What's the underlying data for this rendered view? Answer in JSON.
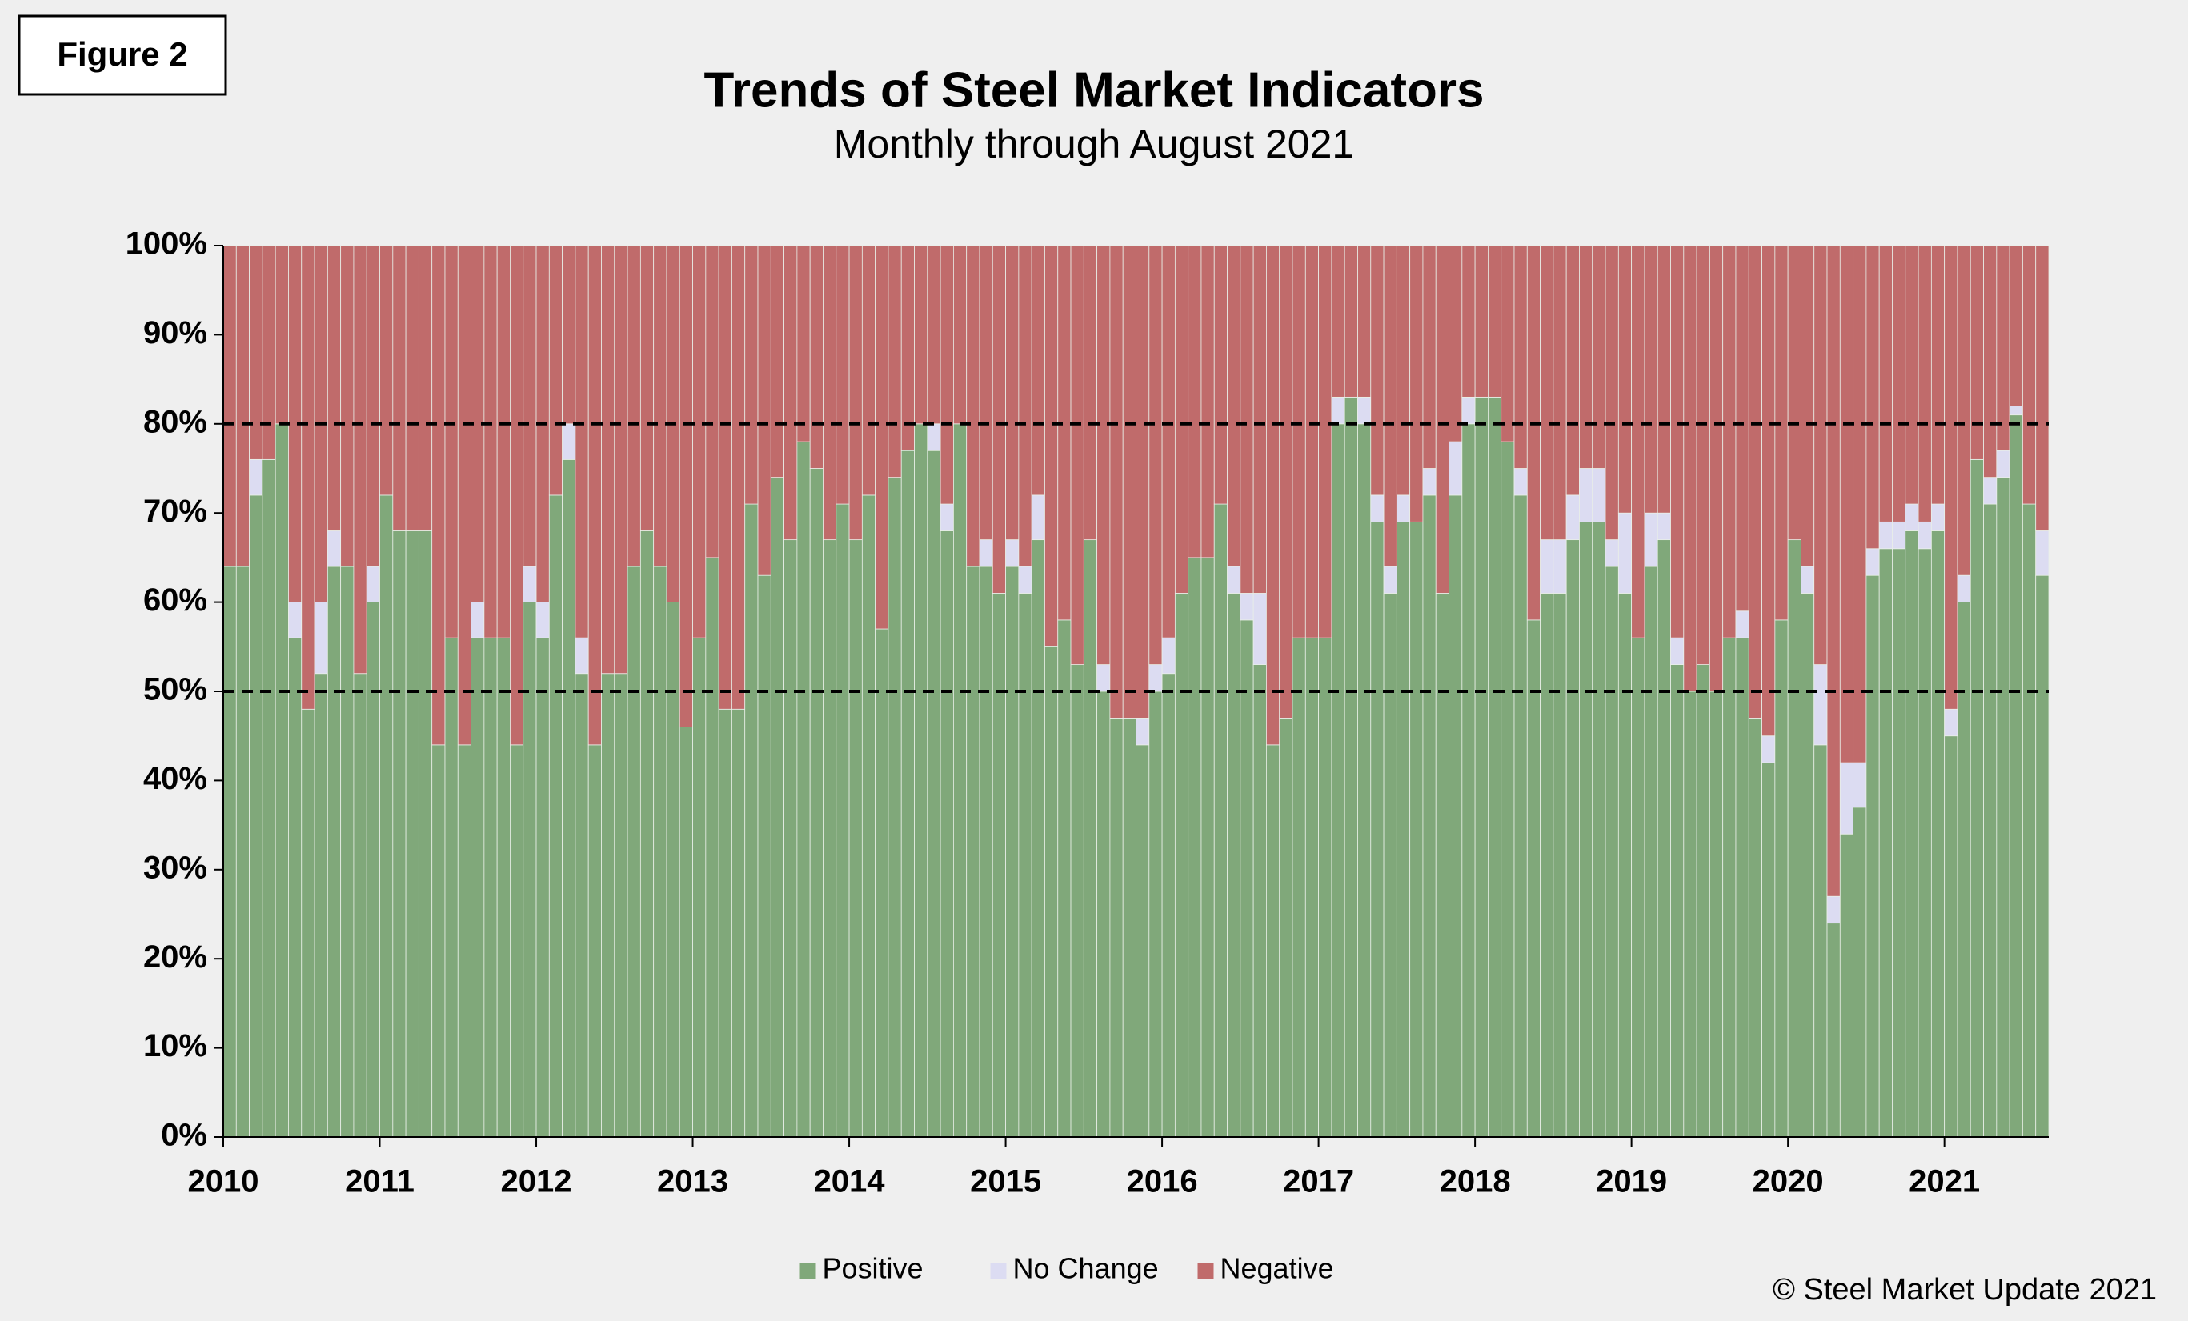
{
  "figure_label": "Figure 2",
  "copyright": "© Steel Market Update 2021",
  "chart_data": {
    "type": "stacked_bar",
    "title": "Trends of Steel Market Indicators",
    "subtitle": "Monthly through August 2021",
    "categories": [
      "2010",
      null,
      null,
      null,
      null,
      null,
      null,
      null,
      null,
      null,
      null,
      null,
      "2011",
      null,
      null,
      null,
      null,
      null,
      null,
      null,
      null,
      null,
      null,
      null,
      "2012",
      null,
      null,
      null,
      null,
      null,
      null,
      null,
      null,
      null,
      null,
      null,
      "2013",
      null,
      null,
      null,
      null,
      null,
      null,
      null,
      null,
      null,
      null,
      null,
      "2014",
      null,
      null,
      null,
      null,
      null,
      null,
      null,
      null,
      null,
      null,
      null,
      "2015",
      null,
      null,
      null,
      null,
      null,
      null,
      null,
      null,
      null,
      null,
      null,
      "2016",
      null,
      null,
      null,
      null,
      null,
      null,
      null,
      null,
      null,
      null,
      null,
      "2017",
      null,
      null,
      null,
      null,
      null,
      null,
      null,
      null,
      null,
      null,
      null,
      "2018",
      null,
      null,
      null,
      null,
      null,
      null,
      null,
      null,
      null,
      null,
      null,
      "2019",
      null,
      null,
      null,
      null,
      null,
      null,
      null,
      null,
      null,
      null,
      null,
      "2020",
      null,
      null,
      null,
      null,
      null,
      null,
      null,
      null,
      null,
      null,
      null,
      "2021",
      null,
      null,
      null,
      null,
      null,
      null,
      null
    ],
    "series": [
      {
        "name": "Positive",
        "color": "#80a87a",
        "values": [
          64,
          64,
          72,
          76,
          80,
          56,
          48,
          52,
          64,
          64,
          52,
          60,
          72,
          68,
          68,
          68,
          44,
          56,
          44,
          56,
          56,
          56,
          44,
          60,
          56,
          72,
          76,
          52,
          44,
          52,
          52,
          64,
          68,
          64,
          60,
          46,
          56,
          65,
          48,
          48,
          71,
          63,
          74,
          67,
          78,
          75,
          67,
          71,
          67,
          72,
          57,
          74,
          77,
          80,
          77,
          68,
          80,
          64,
          64,
          61,
          64,
          61,
          67,
          55,
          58,
          53,
          67,
          50,
          47,
          47,
          44,
          50,
          52,
          61,
          65,
          65,
          71,
          61,
          58,
          53,
          44,
          47,
          56,
          56,
          56,
          80,
          83,
          80,
          69,
          61,
          69,
          69,
          72,
          61,
          72,
          80,
          83,
          83,
          78,
          72,
          58,
          61,
          61,
          67,
          69,
          69,
          64,
          61,
          56,
          64,
          67,
          53,
          50,
          53,
          50,
          56,
          56,
          47,
          42,
          58,
          67,
          61,
          44,
          24,
          34,
          37,
          63,
          66,
          66,
          68,
          66,
          68,
          45,
          60,
          76,
          71,
          74,
          81,
          71,
          63
        ]
      },
      {
        "name": "No Change",
        "color": "#dcdcf2",
        "values": [
          0,
          0,
          4,
          0,
          0,
          4,
          0,
          8,
          4,
          0,
          0,
          4,
          0,
          0,
          0,
          0,
          0,
          0,
          0,
          4,
          0,
          0,
          0,
          4,
          4,
          0,
          4,
          4,
          0,
          0,
          0,
          0,
          0,
          0,
          0,
          0,
          0,
          0,
          0,
          0,
          0,
          0,
          0,
          0,
          0,
          0,
          0,
          0,
          0,
          0,
          0,
          0,
          0,
          0,
          3,
          3,
          0,
          0,
          3,
          0,
          3,
          3,
          5,
          0,
          0,
          0,
          0,
          3,
          0,
          0,
          3,
          3,
          4,
          0,
          0,
          0,
          0,
          3,
          3,
          8,
          0,
          0,
          0,
          0,
          0,
          3,
          0,
          3,
          3,
          3,
          3,
          0,
          3,
          0,
          6,
          3,
          0,
          0,
          0,
          3,
          0,
          6,
          6,
          5,
          6,
          6,
          3,
          9,
          0,
          6,
          3,
          3,
          0,
          0,
          0,
          0,
          3,
          0,
          3,
          0,
          0,
          3,
          9,
          3,
          8,
          5,
          3,
          3,
          3,
          3,
          3,
          3,
          3,
          3,
          0,
          3,
          3,
          1,
          0,
          5
        ]
      },
      {
        "name": "Negative",
        "color": "#c06b6b",
        "values": [
          36,
          36,
          24,
          24,
          20,
          40,
          52,
          40,
          32,
          36,
          48,
          36,
          28,
          32,
          32,
          32,
          56,
          44,
          56,
          40,
          44,
          44,
          56,
          36,
          40,
          28,
          20,
          44,
          56,
          48,
          48,
          36,
          32,
          36,
          40,
          54,
          44,
          35,
          52,
          52,
          29,
          37,
          26,
          33,
          22,
          25,
          33,
          29,
          33,
          28,
          43,
          26,
          23,
          20,
          20,
          29,
          20,
          36,
          33,
          39,
          33,
          36,
          28,
          45,
          42,
          47,
          33,
          47,
          53,
          53,
          53,
          47,
          44,
          39,
          35,
          35,
          29,
          36,
          39,
          39,
          56,
          53,
          44,
          44,
          44,
          17,
          17,
          17,
          28,
          36,
          28,
          31,
          25,
          39,
          22,
          17,
          17,
          17,
          22,
          25,
          42,
          33,
          33,
          28,
          25,
          25,
          33,
          30,
          44,
          30,
          30,
          44,
          50,
          47,
          50,
          44,
          41,
          53,
          55,
          42,
          33,
          36,
          47,
          73,
          58,
          58,
          34,
          31,
          31,
          29,
          31,
          29,
          52,
          37,
          24,
          26,
          23,
          18,
          29,
          32
        ]
      }
    ],
    "ylim": [
      0,
      100
    ],
    "yticks": [
      {
        "value": 0,
        "label": "0%"
      },
      {
        "value": 10,
        "label": "10%"
      },
      {
        "value": 20,
        "label": "20%"
      },
      {
        "value": 30,
        "label": "30%"
      },
      {
        "value": 40,
        "label": "40%"
      },
      {
        "value": 50,
        "label": "50%"
      },
      {
        "value": 60,
        "label": "60%"
      },
      {
        "value": 70,
        "label": "70%"
      },
      {
        "value": 80,
        "label": "80%"
      },
      {
        "value": 90,
        "label": "90%"
      },
      {
        "value": 100,
        "label": "100%"
      }
    ],
    "reference_lines": [
      50,
      80
    ],
    "legend": "bottom"
  }
}
